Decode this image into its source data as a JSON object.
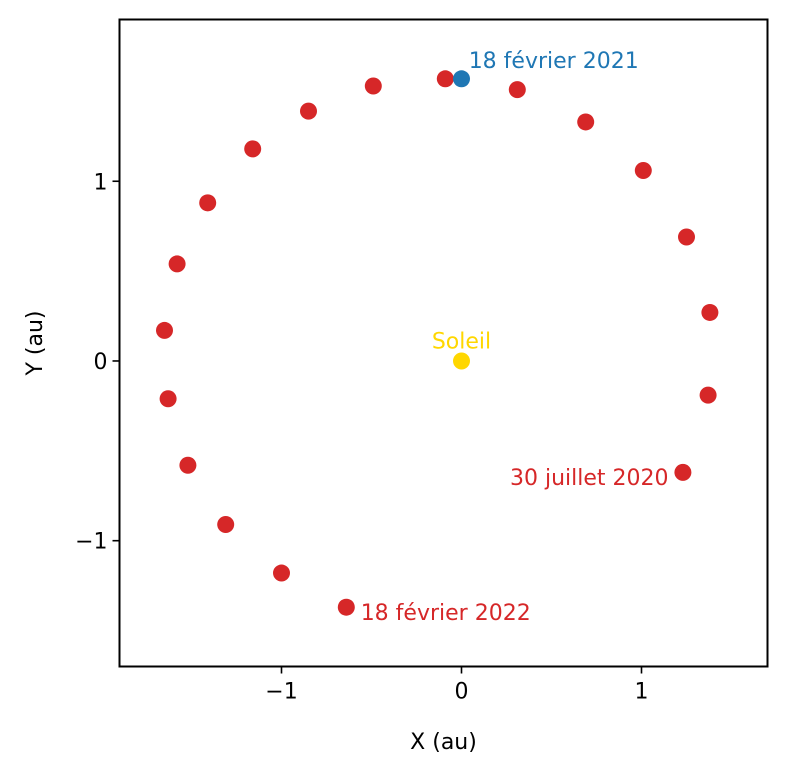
{
  "chart_data": {
    "type": "scatter",
    "title": "",
    "xlabel": "X (au)",
    "ylabel": "Y (au)",
    "xlim": [
      -1.9,
      1.7
    ],
    "ylim": [
      -1.7,
      1.9
    ],
    "xticks": [
      -1,
      0,
      1
    ],
    "yticks": [
      -1,
      0,
      1
    ],
    "xtick_labels": [
      "−1",
      "0",
      "1"
    ],
    "ytick_labels": [
      "−1",
      "0",
      "1"
    ],
    "grid": false,
    "series": [
      {
        "color": "#d62728",
        "points": [
          {
            "x": 1.23,
            "y": -0.62
          },
          {
            "x": 1.37,
            "y": -0.19
          },
          {
            "x": 1.38,
            "y": 0.27
          },
          {
            "x": 1.25,
            "y": 0.69
          },
          {
            "x": 1.01,
            "y": 1.06
          },
          {
            "x": 0.69,
            "y": 1.33
          },
          {
            "x": 0.31,
            "y": 1.51
          },
          {
            "x": -0.09,
            "y": 1.57
          },
          {
            "x": -0.49,
            "y": 1.53
          },
          {
            "x": -0.85,
            "y": 1.39
          },
          {
            "x": -1.16,
            "y": 1.18
          },
          {
            "x": -1.41,
            "y": 0.88
          },
          {
            "x": -1.58,
            "y": 0.54
          },
          {
            "x": -1.65,
            "y": 0.17
          },
          {
            "x": -1.63,
            "y": -0.21
          },
          {
            "x": -1.52,
            "y": -0.58
          },
          {
            "x": -1.31,
            "y": -0.91
          },
          {
            "x": -1.0,
            "y": -1.18
          },
          {
            "x": -0.64,
            "y": -1.37
          }
        ]
      },
      {
        "color": "#1f77b4",
        "points": [
          {
            "x": 0.0,
            "y": 1.57
          }
        ]
      },
      {
        "color": "#ffd700",
        "points": [
          {
            "x": 0.0,
            "y": 0.0
          }
        ]
      }
    ],
    "annotations": [
      {
        "text": "18 février 2021",
        "x": 0.04,
        "y": 1.63,
        "anchor": "start",
        "color": "#1f77b4"
      },
      {
        "text": "Soleil",
        "x": 0.0,
        "y": 0.07,
        "anchor": "middle",
        "color": "#ffd700"
      },
      {
        "text": "30 juillet 2020",
        "x": 1.15,
        "y": -0.69,
        "anchor": "end",
        "color": "#d62728"
      },
      {
        "text": "18 février 2022",
        "x": -0.56,
        "y": -1.44,
        "anchor": "start",
        "color": "#d62728"
      }
    ]
  }
}
